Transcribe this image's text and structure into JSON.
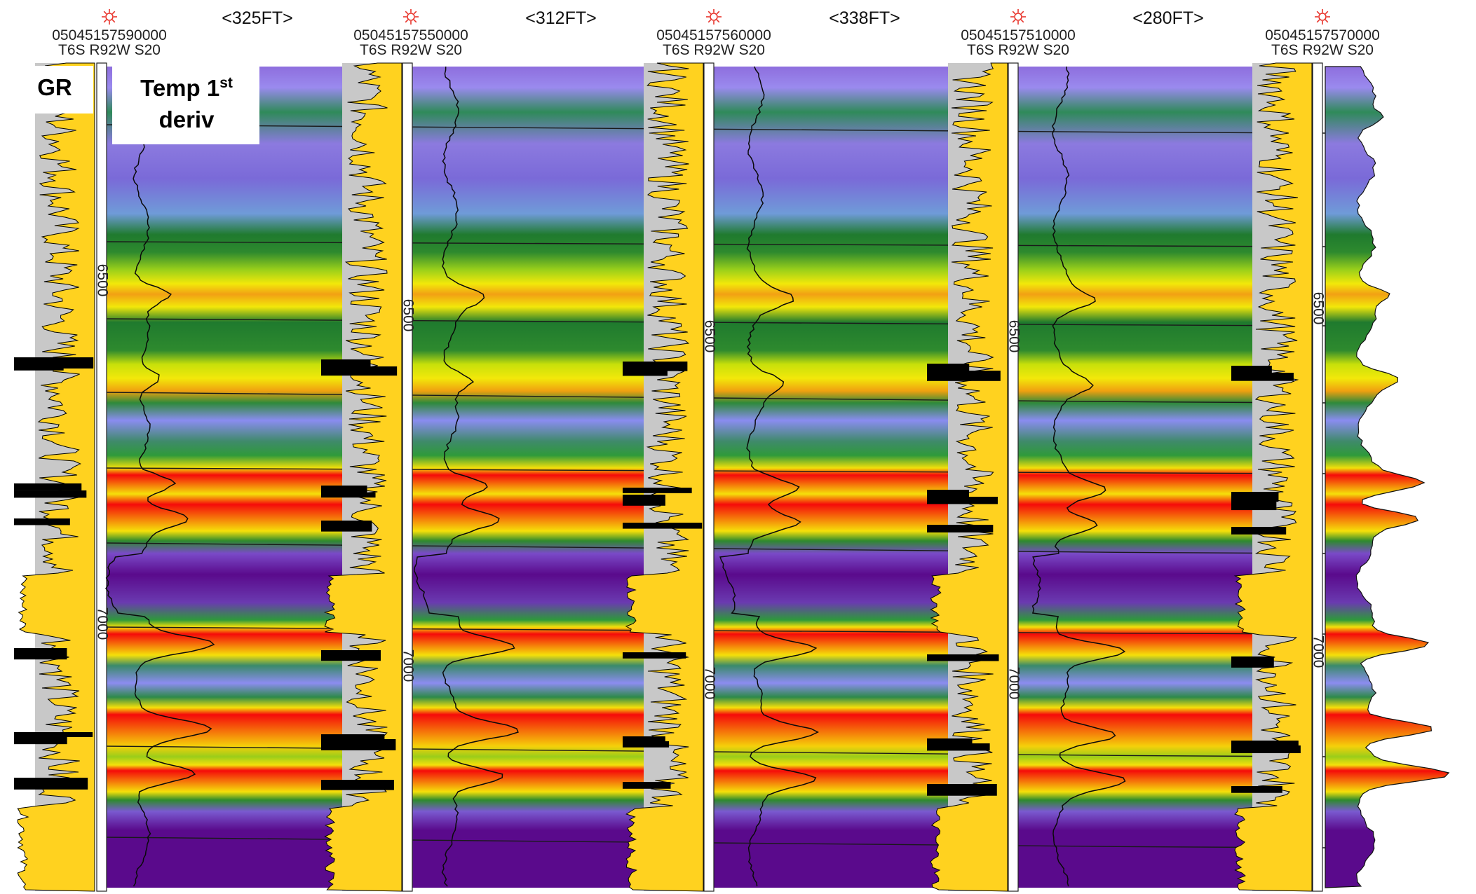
{
  "wells": [
    {
      "api": "05045157590000",
      "location": "T6S R92W S20"
    },
    {
      "api": "05045157550000",
      "location": "T6S R92W S20"
    },
    {
      "api": "05045157560000",
      "location": "T6S R92W S20"
    },
    {
      "api": "05045157510000",
      "location": "T6S R92W S20"
    },
    {
      "api": "05045157570000",
      "location": "T6S R92W S20"
    }
  ],
  "spacings": [
    "<325FT>",
    "<312FT>",
    "<338FT>",
    "<280FT>"
  ],
  "legend": {
    "gr": "GR",
    "temp_line1": "Temp 1",
    "temp_sup": "st",
    "temp_line2": "deriv"
  },
  "depth_labels": [
    "6500",
    "7000"
  ],
  "colors": {
    "gr_fill": "#FFD21F",
    "gr_line": "#000000",
    "well_marker": "#E8332A",
    "scale_low": "#5A0A8C",
    "scale_mid_low": "#8C8CF0",
    "scale_mid": "#1F7A2E",
    "scale_mid_high": "#F5F50A",
    "scale_high": "#F50A0A"
  }
}
